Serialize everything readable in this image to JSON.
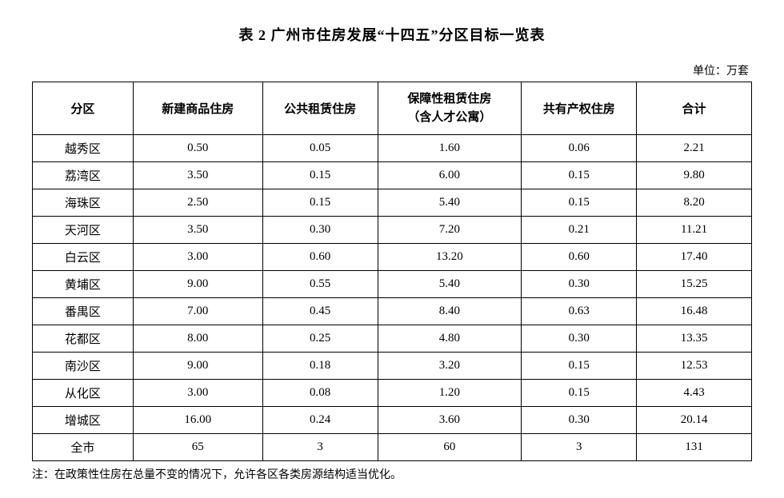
{
  "title": "表 2 广州市住房发展“十四五”分区目标一览表",
  "unit_label": "单位：万套",
  "columns": [
    "分区",
    "新建商品住房",
    "公共租赁住房",
    "保障性租赁住房\n（含人才公寓）",
    "共有产权住房",
    "合计"
  ],
  "rows": [
    [
      "越秀区",
      "0.50",
      "0.05",
      "1.60",
      "0.06",
      "2.21"
    ],
    [
      "荔湾区",
      "3.50",
      "0.15",
      "6.00",
      "0.15",
      "9.80"
    ],
    [
      "海珠区",
      "2.50",
      "0.15",
      "5.40",
      "0.15",
      "8.20"
    ],
    [
      "天河区",
      "3.50",
      "0.30",
      "7.20",
      "0.21",
      "11.21"
    ],
    [
      "白云区",
      "3.00",
      "0.60",
      "13.20",
      "0.60",
      "17.40"
    ],
    [
      "黄埔区",
      "9.00",
      "0.55",
      "5.40",
      "0.30",
      "15.25"
    ],
    [
      "番禺区",
      "7.00",
      "0.45",
      "8.40",
      "0.63",
      "16.48"
    ],
    [
      "花都区",
      "8.00",
      "0.25",
      "4.80",
      "0.30",
      "13.35"
    ],
    [
      "南沙区",
      "9.00",
      "0.18",
      "3.20",
      "0.15",
      "12.53"
    ],
    [
      "从化区",
      "3.00",
      "0.08",
      "1.20",
      "0.15",
      "4.43"
    ],
    [
      "增城区",
      "16.00",
      "0.24",
      "3.60",
      "0.30",
      "20.14"
    ],
    [
      "全市",
      "65",
      "3",
      "60",
      "3",
      "131"
    ]
  ],
  "note": "注：在政策性住房在总量不变的情况下，允许各区各类房源结构适当优化。",
  "styling": {
    "background_color": "#ffffff",
    "text_color": "#000000",
    "border_color": "#000000",
    "title_fontsize": 18,
    "header_fontsize": 15,
    "cell_fontsize": 15,
    "unit_fontsize": 14,
    "note_fontsize": 14,
    "font_family": "SimSun",
    "column_widths_pct": [
      14,
      18,
      16,
      20,
      16,
      16
    ]
  }
}
